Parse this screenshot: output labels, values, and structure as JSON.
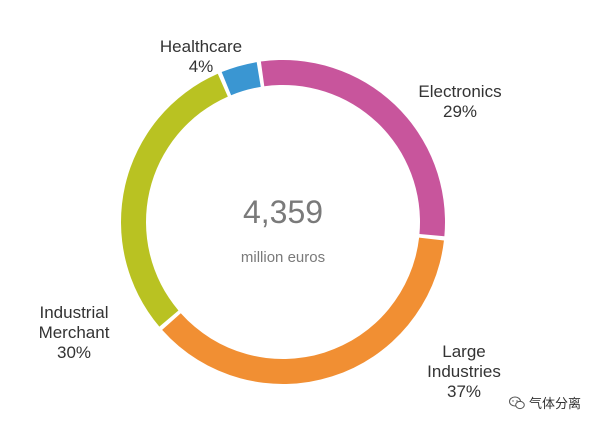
{
  "chart_data": {
    "type": "pie",
    "center": {
      "value": "4,359",
      "unit": "million euros"
    },
    "slices": [
      {
        "label_lines": [
          "Healthcare"
        ],
        "value": 4,
        "value_text": "4%",
        "color": "#3a96d2"
      },
      {
        "label_lines": [
          "Electronics"
        ],
        "value": 29,
        "value_text": "29%",
        "color": "#c8559c"
      },
      {
        "label_lines": [
          "Large",
          "Industries"
        ],
        "value": 37,
        "value_text": "37%",
        "color": "#f18f33"
      },
      {
        "label_lines": [
          "Industrial",
          "Merchant"
        ],
        "value": 30,
        "value_text": "30%",
        "color": "#b9c222"
      }
    ]
  },
  "watermark": {
    "icon": "wechat-icon",
    "text": "气体分离"
  }
}
